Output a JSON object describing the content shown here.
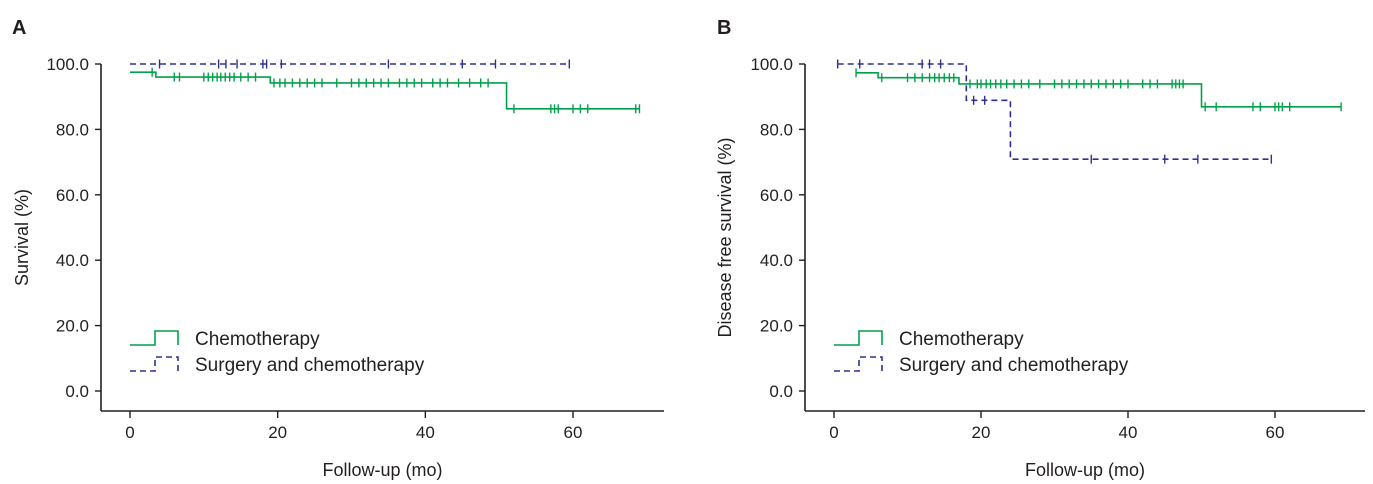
{
  "colors": {
    "chemotherapy": "#00a14b",
    "surgery_and_chemotherapy": "#2e3192",
    "axis": "#231f20"
  },
  "chart_data": [
    {
      "type": "line",
      "subtype": "kaplan-meier step",
      "panel_label": "A",
      "xlabel": "Follow-up (mo)",
      "ylabel": "Survival (%)",
      "xlim": [
        -4,
        72
      ],
      "ylim": [
        -4,
        100
      ],
      "x_ticks": [
        0,
        20,
        40,
        60
      ],
      "y_ticks": [
        0,
        20,
        40,
        60,
        80,
        100
      ],
      "y_tick_labels": [
        "0.0",
        "20.0",
        "40.0",
        "60.0",
        "80.0",
        "100.0"
      ],
      "grid": false,
      "legend": {
        "position": "bottom-left",
        "entries": [
          "Chemotherapy",
          "Surgery and chemotherapy"
        ]
      },
      "series": [
        {
          "name": "Chemotherapy",
          "color": "#00a14b",
          "style": "solid",
          "steps": [
            [
              0,
              97.5
            ],
            [
              3.5,
              96
            ],
            [
              19,
              94.2
            ],
            [
              51,
              86.3
            ],
            [
              69,
              86.3
            ]
          ],
          "censored": [
            3,
            6,
            6.7,
            10,
            10.6,
            11.2,
            11.8,
            12.3,
            12.9,
            13.5,
            14.1,
            15,
            16,
            17,
            19.5,
            20.3,
            21,
            22,
            23,
            24,
            25,
            26,
            28,
            30,
            31,
            32,
            33,
            34,
            35,
            36.5,
            37.5,
            38.5,
            39.5,
            41,
            42,
            43,
            44.5,
            46,
            47.5,
            48.5,
            52,
            57,
            57.5,
            58,
            60,
            61,
            62,
            68.5,
            69
          ]
        },
        {
          "name": "Surgery and chemotherapy",
          "color": "#2e3192",
          "style": "dashed",
          "steps": [
            [
              0,
              100
            ],
            [
              59.5,
              100
            ]
          ],
          "censored": [
            4,
            12,
            13,
            14.5,
            18,
            18.5,
            20.5,
            35,
            45,
            49.5,
            59.5
          ]
        }
      ]
    },
    {
      "type": "line",
      "subtype": "kaplan-meier step",
      "panel_label": "B",
      "xlabel": "Follow-up (mo)",
      "ylabel": "Disease free survival (%)",
      "xlim": [
        -4,
        72
      ],
      "ylim": [
        -4,
        100
      ],
      "x_ticks": [
        0,
        20,
        40,
        60
      ],
      "y_ticks": [
        0,
        20,
        40,
        60,
        80,
        100
      ],
      "y_tick_labels": [
        "0.0",
        "20.0",
        "40.0",
        "60.0",
        "80.0",
        "100.0"
      ],
      "grid": false,
      "legend": {
        "position": "bottom-left",
        "entries": [
          "Chemotherapy",
          "Surgery and chemotherapy"
        ]
      },
      "series": [
        {
          "name": "Chemotherapy",
          "color": "#00a14b",
          "style": "solid",
          "steps": [
            [
              3,
              97.3
            ],
            [
              6,
              95.8
            ],
            [
              17,
              93.9
            ],
            [
              50,
              86.9
            ],
            [
              69,
              86.9
            ]
          ],
          "censored": [
            3,
            6.5,
            10,
            11,
            12,
            13,
            13.7,
            14.3,
            15,
            15.7,
            16.3,
            18.5,
            19.5,
            20,
            20.7,
            21.3,
            22,
            22.7,
            23.5,
            24.5,
            25.5,
            26.5,
            28,
            30,
            31,
            32,
            33,
            34,
            35,
            36,
            37,
            38,
            39,
            40,
            42,
            43,
            44,
            46,
            46.5,
            47,
            47.5,
            50.5,
            52,
            57,
            58,
            60,
            60.5,
            61,
            62,
            69
          ]
        },
        {
          "name": "Surgery and chemotherapy",
          "color": "#2e3192",
          "style": "dashed",
          "steps": [
            [
              0.5,
              100
            ],
            [
              18,
              88.9
            ],
            [
              24,
              70.9
            ],
            [
              59.5,
              70.9
            ]
          ],
          "censored": [
            0.5,
            3.5,
            12,
            13,
            14.5,
            19,
            20.5,
            35,
            45,
            49.5,
            59.5
          ]
        }
      ]
    }
  ]
}
